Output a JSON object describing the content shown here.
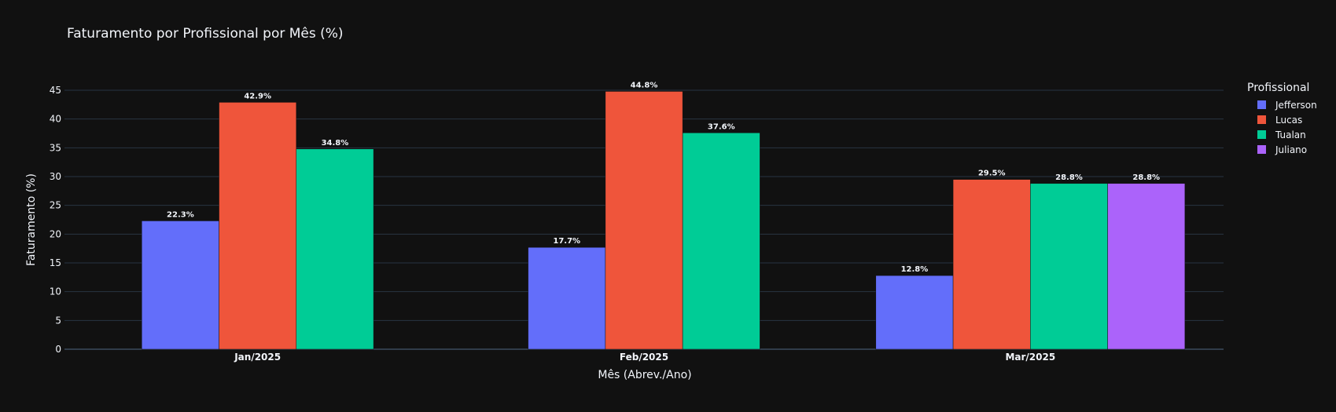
{
  "chart_data": {
    "type": "bar",
    "title": "Faturamento por Profissional por Mês (%)",
    "xlabel": "Mês (Abrev./Ano)",
    "ylabel": "Faturamento (%)",
    "categories": [
      "Jan/2025",
      "Feb/2025",
      "Mar/2025"
    ],
    "ylim": [
      0,
      45
    ],
    "yticks": [
      0,
      5,
      10,
      15,
      20,
      25,
      30,
      35,
      40,
      45
    ],
    "grid": true,
    "legend_title": "Profissional",
    "legend_position": "right",
    "series": [
      {
        "name": "Jefferson",
        "color": "#636efa",
        "values": [
          22.3,
          17.7,
          12.8
        ],
        "labels": [
          "22.3%",
          "17.7%",
          "12.8%"
        ]
      },
      {
        "name": "Lucas",
        "color": "#ef553b",
        "values": [
          42.9,
          44.8,
          29.5
        ],
        "labels": [
          "42.9%",
          "44.8%",
          "29.5%"
        ]
      },
      {
        "name": "Tualan",
        "color": "#00cc96",
        "values": [
          34.8,
          37.6,
          28.8
        ],
        "labels": [
          "34.8%",
          "37.6%",
          "28.8%"
        ]
      },
      {
        "name": "Juliano",
        "color": "#ab63fa",
        "values": [
          null,
          null,
          28.8
        ],
        "labels": [
          null,
          null,
          "28.8%"
        ]
      }
    ]
  }
}
